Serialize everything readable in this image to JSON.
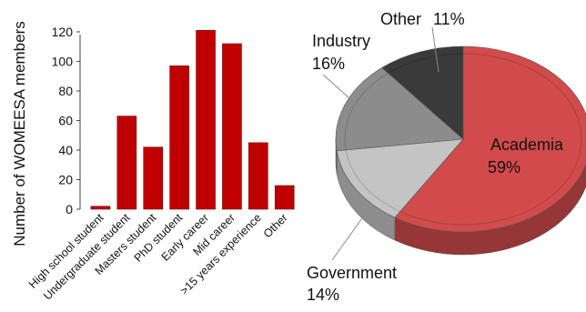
{
  "chart_data": [
    {
      "type": "bar",
      "title": "",
      "xlabel": "",
      "ylabel": "Number of WOMEESA members",
      "ylim": [
        0,
        120
      ],
      "yticks": [
        0,
        20,
        40,
        60,
        80,
        100,
        120
      ],
      "grid": false,
      "bar_color": "#c00000",
      "categories": [
        "High school student",
        "Undergraduate student",
        "Masters student",
        "PhD student",
        "Early career",
        "Mid career",
        ">15 years experience",
        "Other"
      ],
      "values": [
        2,
        63,
        42,
        97,
        121,
        112,
        45,
        16
      ]
    },
    {
      "type": "pie",
      "title": "",
      "slices": [
        {
          "label": "Academia",
          "percent": "59%",
          "value": 59,
          "color": "#d24b4b"
        },
        {
          "label": "Government",
          "percent": "14%",
          "value": 14,
          "color": "#c4c4c4"
        },
        {
          "label": "Industry",
          "percent": "16%",
          "value": 16,
          "color": "#8c8c8c"
        },
        {
          "label": "Other",
          "percent": "11%",
          "value": 11,
          "color": "#3a3a3a"
        }
      ]
    }
  ]
}
